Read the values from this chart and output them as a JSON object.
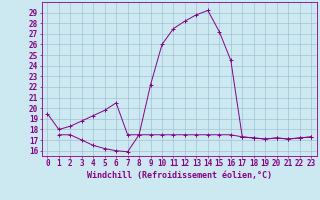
{
  "xlabel": "Windchill (Refroidissement éolien,°C)",
  "hours": [
    0,
    1,
    2,
    3,
    4,
    5,
    6,
    7,
    8,
    9,
    10,
    11,
    12,
    13,
    14,
    15,
    16,
    17,
    18,
    19,
    20,
    21,
    22,
    23
  ],
  "line1": [
    19.5,
    18.0,
    18.3,
    18.8,
    19.3,
    19.8,
    20.5,
    17.5,
    17.5,
    22.2,
    26.0,
    27.5,
    28.2,
    28.8,
    29.2,
    27.2,
    24.5,
    17.3,
    17.2,
    17.1,
    17.2,
    17.1,
    17.2,
    17.3
  ],
  "line2": [
    null,
    17.5,
    17.5,
    17.0,
    16.5,
    16.2,
    16.0,
    15.9,
    17.5,
    17.5,
    17.5,
    17.5,
    17.5,
    17.5,
    17.5,
    17.5,
    17.5,
    17.3,
    17.2,
    17.1,
    17.2,
    17.1,
    17.2,
    17.3
  ],
  "line_color": "#880088",
  "bg_color": "#cce8f0",
  "grid_color": "#99bbcc",
  "yticks": [
    16,
    17,
    18,
    19,
    20,
    21,
    22,
    23,
    24,
    25,
    26,
    27,
    28,
    29
  ],
  "ylim_min": 15.5,
  "ylim_max": 30.0,
  "xlabel_fontsize": 6.0,
  "tick_fontsize": 5.5
}
